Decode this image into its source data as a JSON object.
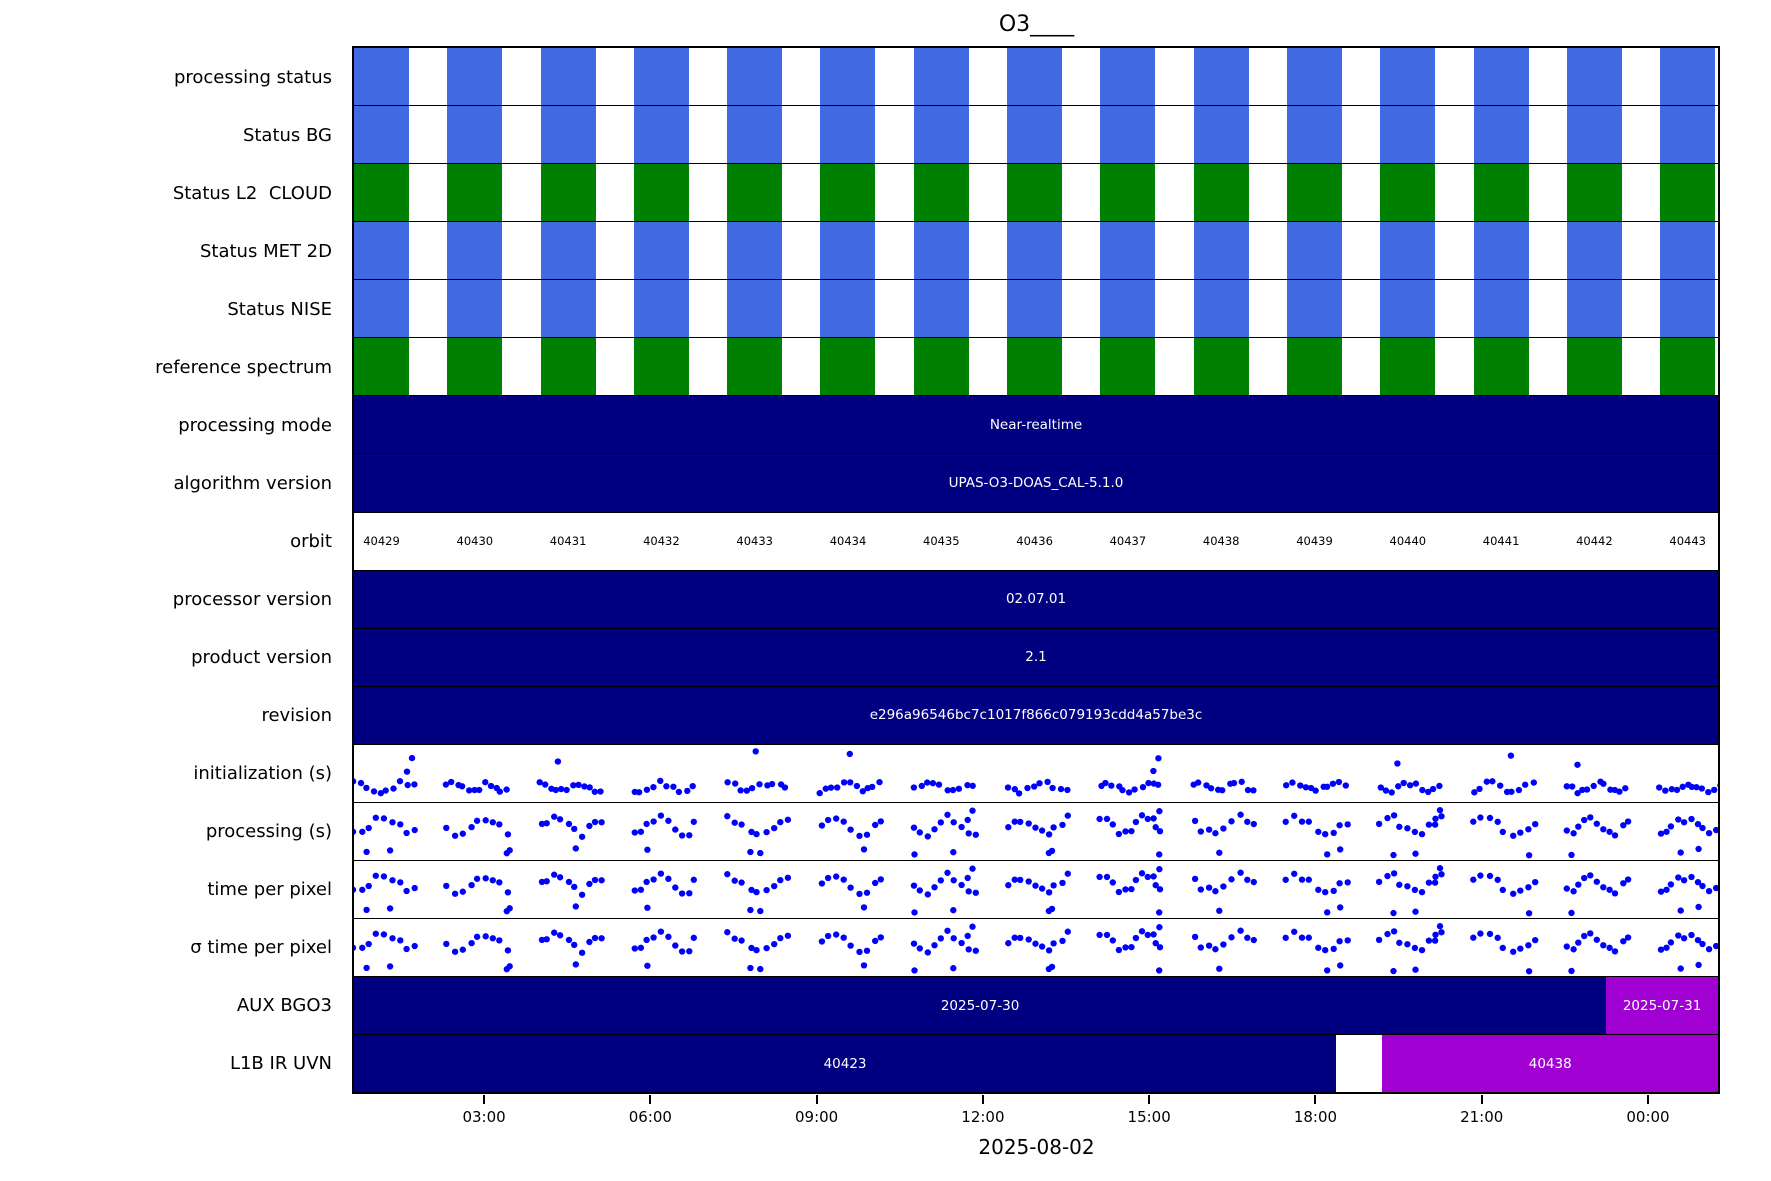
{
  "title": "O3____",
  "colors": {
    "block_blue": "#4169E1",
    "block_green": "#008000",
    "bar_navy": "#000080",
    "segment_magenta": "#A000D2",
    "scatter_blue": "#0000FF"
  },
  "x_axis": {
    "ticks": [
      "03:00",
      "06:00",
      "09:00",
      "12:00",
      "15:00",
      "18:00",
      "21:00",
      "00:00"
    ],
    "date_label": "2025-08-02"
  },
  "chart_data": {
    "type": "timeline",
    "title": "O3____",
    "x_tick_labels": [
      "03:00",
      "06:00",
      "09:00",
      "12:00",
      "15:00",
      "18:00",
      "21:00",
      "00:00"
    ],
    "x_date": "2025-08-02",
    "orbits": [
      "40429",
      "40430",
      "40431",
      "40432",
      "40433",
      "40434",
      "40435",
      "40436",
      "40437",
      "40438",
      "40439",
      "40440",
      "40441",
      "40442",
      "40443"
    ],
    "rows": [
      {
        "label": "processing status",
        "type": "blocks",
        "color": "block_blue"
      },
      {
        "label": "Status BG",
        "type": "blocks",
        "color": "block_blue"
      },
      {
        "label": "Status L2  CLOUD",
        "type": "blocks",
        "color": "block_green"
      },
      {
        "label": "Status MET 2D",
        "type": "blocks",
        "color": "block_blue"
      },
      {
        "label": "Status NISE",
        "type": "blocks",
        "color": "block_blue"
      },
      {
        "label": "reference spectrum",
        "type": "blocks",
        "color": "block_green"
      },
      {
        "label": "processing mode",
        "type": "bar",
        "value": "Near-realtime"
      },
      {
        "label": "algorithm version",
        "type": "bar",
        "value": "UPAS-O3-DOAS_CAL-5.1.0"
      },
      {
        "label": "orbit",
        "type": "orbit_numbers"
      },
      {
        "label": "processor version",
        "type": "bar",
        "value": "02.07.01"
      },
      {
        "label": "product version",
        "type": "bar",
        "value": "2.1"
      },
      {
        "label": "revision",
        "type": "bar",
        "value": "e296a96546bc7c1017f866c079193cdd4a57be3c"
      },
      {
        "label": "initialization (s)",
        "type": "scatter",
        "variant": "init",
        "note": "blue dot clusters per orbit, no y scale shown"
      },
      {
        "label": "processing (s)",
        "type": "scatter",
        "variant": "proc",
        "note": "blue dot clusters per orbit, no y scale shown"
      },
      {
        "label": "time per pixel",
        "type": "scatter",
        "variant": "proc",
        "note": "blue dot clusters per orbit, no y scale shown"
      },
      {
        "label": "σ time per pixel",
        "type": "scatter",
        "variant": "proc",
        "note": "blue dot clusters per orbit, no y scale shown"
      },
      {
        "label": "AUX BGO3",
        "type": "segments",
        "segments": [
          {
            "value": "2025-07-30",
            "color": "bar_navy",
            "start_frac": 0.0,
            "end_frac": 0.918
          },
          {
            "value": "2025-07-31",
            "color": "segment_magenta",
            "start_frac": 0.918,
            "end_frac": 1.0
          }
        ]
      },
      {
        "label": "L1B IR UVN",
        "type": "segments",
        "segments": [
          {
            "value": "40423",
            "color": "bar_navy",
            "start_frac": 0.0,
            "end_frac": 0.72
          },
          {
            "value": "40438",
            "color": "segment_magenta",
            "start_frac": 0.754,
            "end_frac": 1.0
          }
        ]
      }
    ]
  }
}
